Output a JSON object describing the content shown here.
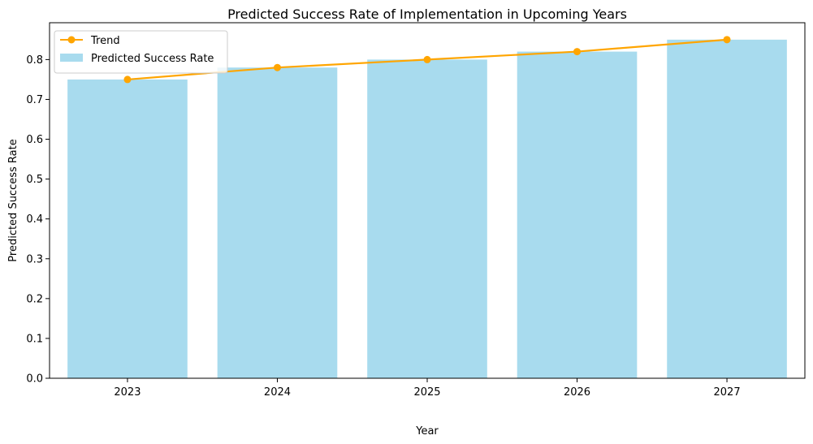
{
  "chart_data": {
    "type": "bar",
    "title": "Predicted Success Rate of Implementation in Upcoming Years",
    "xlabel": "Year",
    "ylabel": "Predicted Success Rate",
    "categories": [
      "2023",
      "2024",
      "2025",
      "2026",
      "2027"
    ],
    "ylim": [
      0,
      0.8925
    ],
    "yticks": [
      "0.0",
      "0.1",
      "0.2",
      "0.3",
      "0.4",
      "0.5",
      "0.6",
      "0.7",
      "0.8"
    ],
    "series": [
      {
        "name": "Predicted Success Rate",
        "kind": "bar",
        "color": "#a8dbee",
        "values": [
          0.75,
          0.78,
          0.8,
          0.82,
          0.85
        ]
      },
      {
        "name": "Trend",
        "kind": "line",
        "color": "#ffa500",
        "values": [
          0.75,
          0.78,
          0.8,
          0.82,
          0.85
        ]
      }
    ],
    "grid": false,
    "legend": "top-left"
  }
}
